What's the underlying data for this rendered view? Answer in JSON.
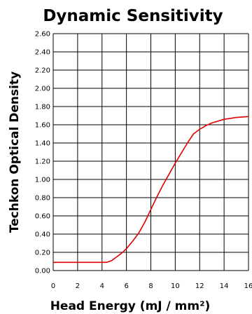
{
  "chart_data": {
    "type": "line",
    "title": "Dynamic Sensitivity",
    "xlabel": "Head Energy (mJ / mm²)",
    "ylabel": "Techkon Optical Density",
    "xlim": [
      0,
      16
    ],
    "ylim": [
      0,
      2.6
    ],
    "x_ticks": [
      "0",
      "2",
      "4",
      "6",
      "8",
      "10",
      "12",
      "14",
      "16"
    ],
    "y_ticks": [
      "0.00",
      "0.20",
      "0.40",
      "0.60",
      "0.80",
      "1.00",
      "1.20",
      "1.40",
      "1.60",
      "1.80",
      "2.00",
      "2.20",
      "2.40",
      "2.60"
    ],
    "grid": true,
    "series": [
      {
        "color": "#e00000",
        "x": [
          0,
          2,
          4,
          4.4,
          4.8,
          5.2,
          5.6,
          6.0,
          6.5,
          7.0,
          7.5,
          8.0,
          8.5,
          9.0,
          9.5,
          10.0,
          10.5,
          11.0,
          11.5,
          12.0,
          12.5,
          13.0,
          13.5,
          14.0,
          14.5,
          15.0,
          15.5,
          16.0
        ],
        "y": [
          0.09,
          0.09,
          0.09,
          0.09,
          0.11,
          0.15,
          0.19,
          0.24,
          0.32,
          0.41,
          0.53,
          0.67,
          0.81,
          0.94,
          1.06,
          1.18,
          1.29,
          1.4,
          1.5,
          1.55,
          1.59,
          1.62,
          1.64,
          1.66,
          1.67,
          1.68,
          1.685,
          1.69
        ]
      }
    ]
  }
}
